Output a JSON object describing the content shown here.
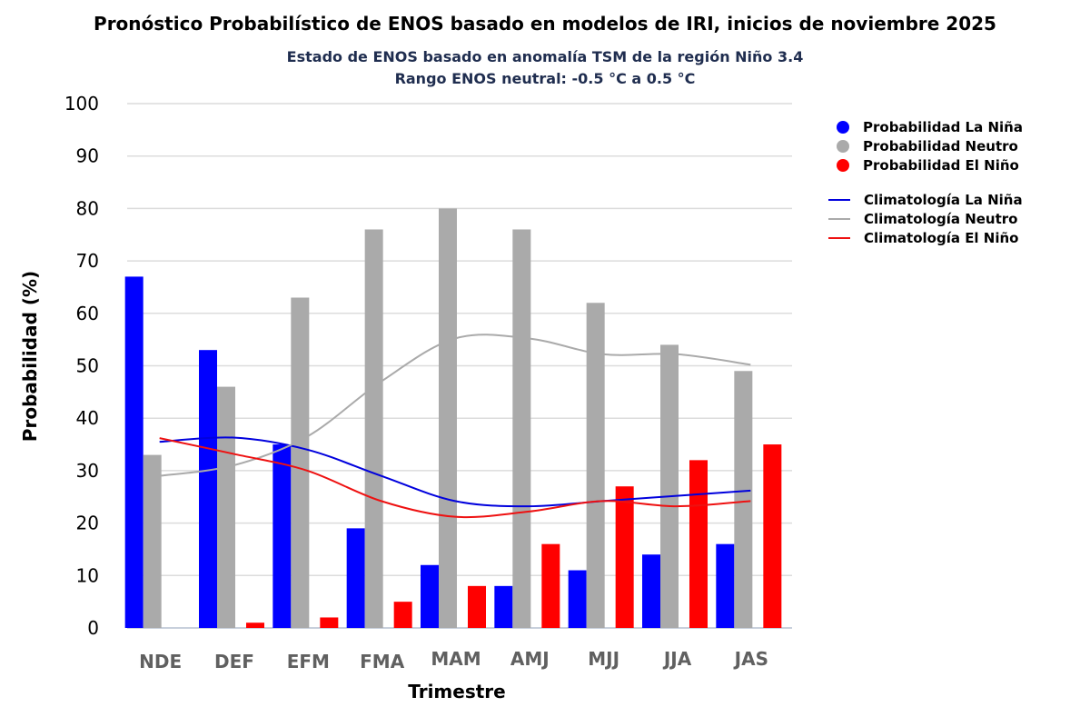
{
  "chart_data": {
    "type": "bar",
    "title": "Pronóstico Probabilístico de ENOS basado en modelos de IRI, inicios de noviembre 2025",
    "subtitle_lines": [
      "Estado de ENOS basado en anomalía TSM de la región Niño 3.4",
      "Rango ENOS neutral: -0.5 °C a 0.5 °C"
    ],
    "xlabel": "Trimestre",
    "ylabel": "Probabilidad (%)",
    "ylim": [
      0,
      100
    ],
    "yticks": [
      0,
      10,
      20,
      30,
      40,
      50,
      60,
      70,
      80,
      90,
      100
    ],
    "grid": true,
    "legend_position": "right",
    "categories": [
      "NDE",
      "DEF",
      "EFM",
      "FMA",
      "MAM",
      "AMJ",
      "MJJ",
      "JJA",
      "JAS"
    ],
    "series": [
      {
        "name": "Probabilidad La Niña",
        "kind": "bar",
        "color": "#0000ff",
        "values": [
          67,
          53,
          35,
          19,
          12,
          8,
          11,
          14,
          16
        ]
      },
      {
        "name": "Probabilidad Neutro",
        "kind": "bar",
        "color": "#aaaaaa",
        "values": [
          33,
          46,
          63,
          76,
          80,
          76,
          62,
          54,
          49
        ]
      },
      {
        "name": "Probabilidad El Niño",
        "kind": "bar",
        "color": "#ff0000",
        "values": [
          0,
          1,
          2,
          5,
          8,
          16,
          27,
          32,
          35
        ]
      },
      {
        "name": "Climatología La Niña",
        "kind": "line",
        "color": "#0000dd",
        "values": [
          35.5,
          36.3,
          34.0,
          29.0,
          24.2,
          23.2,
          24.2,
          25.2,
          26.2
        ]
      },
      {
        "name": "Climatología Neutro",
        "kind": "line",
        "color": "#aaaaaa",
        "values": [
          29.0,
          31.0,
          36.5,
          47.0,
          55.2,
          55.2,
          52.2,
          52.2,
          50.2
        ]
      },
      {
        "name": "Climatología El Niño",
        "kind": "line",
        "color": "#ee1111",
        "values": [
          36.2,
          33.2,
          30.0,
          24.2,
          21.2,
          22.2,
          24.2,
          23.2,
          24.2
        ]
      }
    ]
  }
}
